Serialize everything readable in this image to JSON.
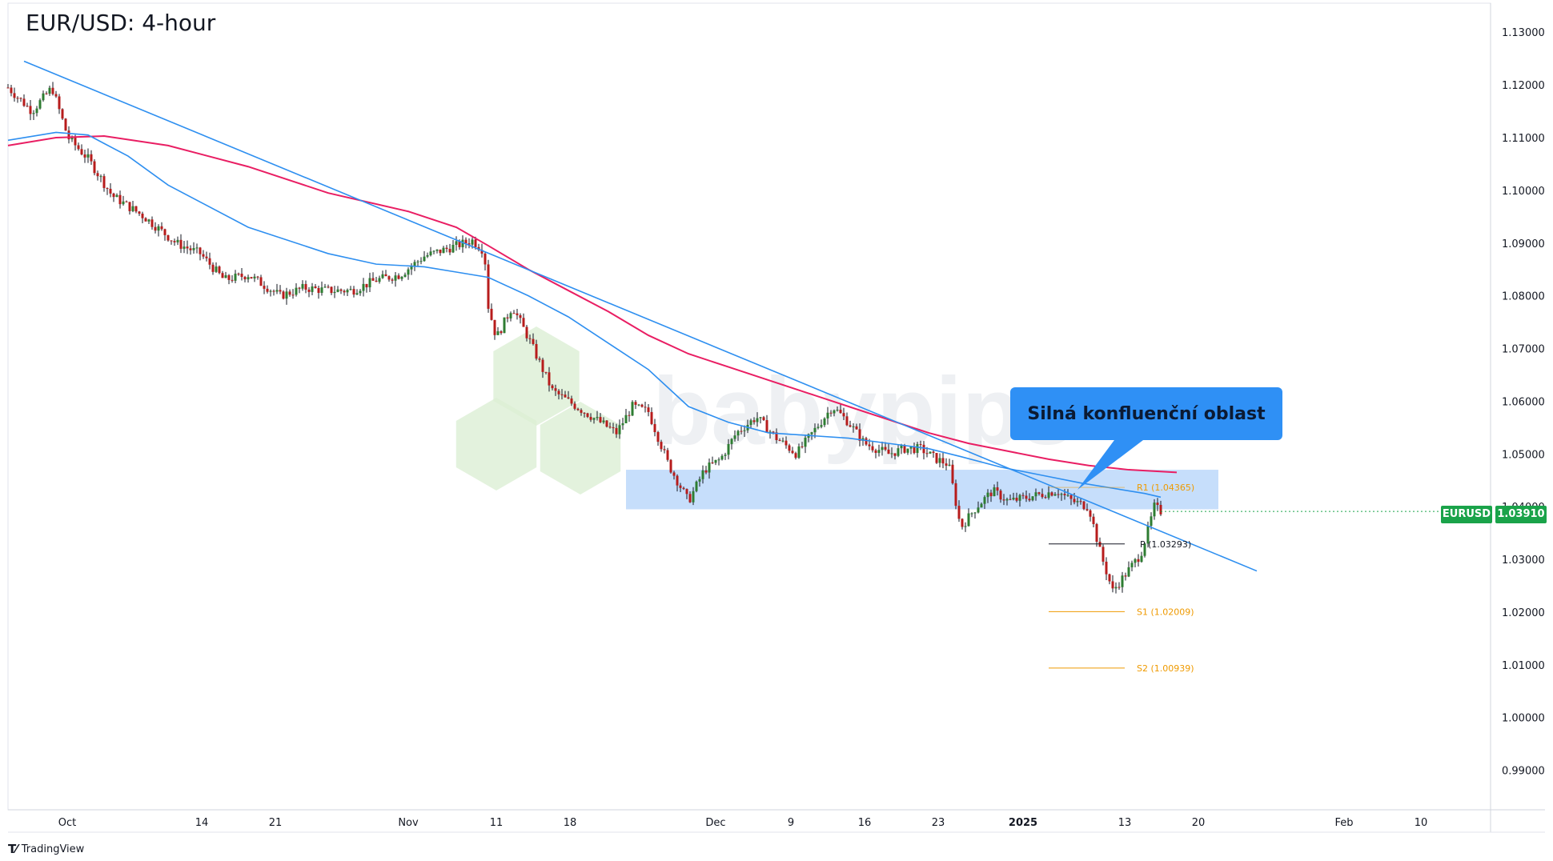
{
  "header": {
    "title": "EUR/USD: 4-hour"
  },
  "price_tag": {
    "symbol": "EURUSD",
    "value": "1.03910"
  },
  "callout": {
    "text": "Silná konfluenční oblast"
  },
  "watermark": "babypips",
  "footer": {
    "brand": "TradingView"
  },
  "colors": {
    "ema_fast": "#2e8ff0",
    "ema_slow": "#e91e63",
    "trendline": "#2e8ff0",
    "zone": "#bcd8fa",
    "candle_up": "#2e7d32",
    "candle_down": "#b71c1c",
    "pivot": "#131722",
    "resistance": "#ef9a00",
    "support": "#ef9a00"
  },
  "chart_data": {
    "type": "candlestick",
    "title": "EUR/USD: 4-hour",
    "x_ticks": [
      "Oct",
      "14",
      "21",
      "Nov",
      "11",
      "18",
      "Dec",
      "9",
      "16",
      "23",
      "2025",
      "13",
      "20",
      "Feb",
      "10"
    ],
    "y_ticks": [
      "1.13000",
      "1.12000",
      "1.11000",
      "1.10000",
      "1.09000",
      "1.08000",
      "1.07000",
      "1.06000",
      "1.05000",
      "1.04000",
      "1.03000",
      "1.02000",
      "1.01000",
      "1.00000",
      "0.99000"
    ],
    "ylim": [
      0.9825,
      1.1355
    ],
    "last_price": 1.0391,
    "price_path": [
      [
        0,
        1.1195
      ],
      [
        30,
        1.115
      ],
      [
        55,
        1.1195
      ],
      [
        75,
        1.11
      ],
      [
        100,
        1.106
      ],
      [
        130,
        1.099
      ],
      [
        170,
        1.095
      ],
      [
        210,
        1.09
      ],
      [
        240,
        1.088
      ],
      [
        270,
        1.083
      ],
      [
        300,
        1.084
      ],
      [
        340,
        1.08
      ],
      [
        370,
        1.0815
      ],
      [
        400,
        1.081
      ],
      [
        430,
        1.081
      ],
      [
        460,
        1.083
      ],
      [
        490,
        1.084
      ],
      [
        520,
        1.0875
      ],
      [
        550,
        1.089
      ],
      [
        580,
        1.0905
      ],
      [
        595,
        1.0885
      ],
      [
        600,
        1.078
      ],
      [
        610,
        1.072
      ],
      [
        630,
        1.078
      ],
      [
        650,
        1.072
      ],
      [
        680,
        1.062
      ],
      [
        710,
        1.059
      ],
      [
        740,
        1.056
      ],
      [
        760,
        1.054
      ],
      [
        780,
        1.059
      ],
      [
        800,
        1.058
      ],
      [
        825,
        1.048
      ],
      [
        850,
        1.041
      ],
      [
        870,
        1.047
      ],
      [
        890,
        1.049
      ],
      [
        910,
        1.054
      ],
      [
        935,
        1.057
      ],
      [
        960,
        1.053
      ],
      [
        985,
        1.05
      ],
      [
        1010,
        1.055
      ],
      [
        1030,
        1.059
      ],
      [
        1050,
        1.056
      ],
      [
        1070,
        1.052
      ],
      [
        1100,
        1.05
      ],
      [
        1120,
        1.051
      ],
      [
        1140,
        1.051
      ],
      [
        1160,
        1.049
      ],
      [
        1175,
        1.048
      ],
      [
        1190,
        1.036
      ],
      [
        1210,
        1.04
      ],
      [
        1230,
        1.043
      ],
      [
        1250,
        1.041
      ],
      [
        1280,
        1.042
      ],
      [
        1310,
        1.043
      ],
      [
        1330,
        1.041
      ],
      [
        1350,
        1.04
      ],
      [
        1365,
        1.031
      ],
      [
        1380,
        1.024
      ],
      [
        1400,
        1.028
      ],
      [
        1415,
        1.031
      ],
      [
        1425,
        1.036
      ],
      [
        1432,
        1.04
      ],
      [
        1440,
        1.0391
      ]
    ],
    "ema_fast": [
      [
        0,
        1.1095
      ],
      [
        60,
        1.111
      ],
      [
        100,
        1.1105
      ],
      [
        150,
        1.1065
      ],
      [
        200,
        1.101
      ],
      [
        300,
        1.093
      ],
      [
        400,
        1.088
      ],
      [
        460,
        1.086
      ],
      [
        520,
        1.0855
      ],
      [
        560,
        1.0845
      ],
      [
        600,
        1.0835
      ],
      [
        650,
        1.08
      ],
      [
        700,
        1.076
      ],
      [
        750,
        1.071
      ],
      [
        800,
        1.066
      ],
      [
        850,
        1.059
      ],
      [
        900,
        1.056
      ],
      [
        950,
        1.054
      ],
      [
        1000,
        1.0535
      ],
      [
        1050,
        1.053
      ],
      [
        1100,
        1.052
      ],
      [
        1150,
        1.051
      ],
      [
        1190,
        1.0495
      ],
      [
        1240,
        1.0475
      ],
      [
        1290,
        1.046
      ],
      [
        1340,
        1.0445
      ],
      [
        1380,
        1.0435
      ],
      [
        1420,
        1.0425
      ],
      [
        1440,
        1.0418
      ]
    ],
    "ema_slow": [
      [
        0,
        1.1085
      ],
      [
        60,
        1.11
      ],
      [
        120,
        1.1103
      ],
      [
        200,
        1.1085
      ],
      [
        300,
        1.1045
      ],
      [
        400,
        1.0995
      ],
      [
        500,
        1.096
      ],
      [
        560,
        1.093
      ],
      [
        600,
        1.0895
      ],
      [
        650,
        1.085
      ],
      [
        700,
        1.081
      ],
      [
        750,
        1.077
      ],
      [
        800,
        1.0725
      ],
      [
        850,
        1.069
      ],
      [
        900,
        1.0665
      ],
      [
        950,
        1.064
      ],
      [
        1000,
        1.0615
      ],
      [
        1050,
        1.059
      ],
      [
        1100,
        1.0565
      ],
      [
        1150,
        1.054
      ],
      [
        1200,
        1.052
      ],
      [
        1250,
        1.0505
      ],
      [
        1300,
        1.049
      ],
      [
        1350,
        1.0478
      ],
      [
        1400,
        1.047
      ],
      [
        1460,
        1.0465
      ]
    ],
    "trendline": {
      "from": [
        0,
        1.1245
      ],
      "to": [
        1640,
        1.0278
      ]
    },
    "zone": {
      "from_x": 750,
      "to_x": 1490,
      "low": 1.0395,
      "high": 1.047
    },
    "levels": [
      {
        "label": "R1 (1.04365)",
        "value": 1.04365,
        "kind": "resistance"
      },
      {
        "label": "P (1.03293)",
        "value": 1.03293,
        "kind": "pivot"
      },
      {
        "label": "S1 (1.02009)",
        "value": 1.02009,
        "kind": "support"
      },
      {
        "label": "S2 (1.00939)",
        "value": 1.00939,
        "kind": "support"
      }
    ]
  }
}
